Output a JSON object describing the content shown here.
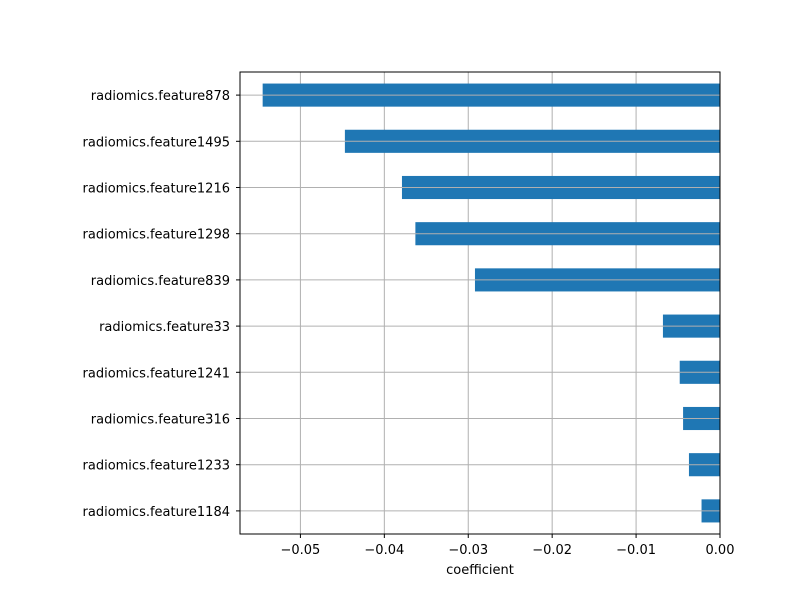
{
  "chart_data": {
    "type": "bar",
    "orientation": "horizontal",
    "categories": [
      "radiomics.feature878",
      "radiomics.feature1495",
      "radiomics.feature1216",
      "radiomics.feature1298",
      "radiomics.feature839",
      "radiomics.feature33",
      "radiomics.feature1241",
      "radiomics.feature316",
      "radiomics.feature1233",
      "radiomics.feature1184"
    ],
    "values": [
      -0.0545,
      -0.0447,
      -0.0379,
      -0.0363,
      -0.0292,
      -0.0068,
      -0.0048,
      -0.0044,
      -0.0037,
      -0.0022
    ],
    "xlabel": "coefficient",
    "ylabel": "",
    "title": "",
    "xlim": [
      -0.0572,
      0.0
    ],
    "xticks": [
      -0.05,
      -0.04,
      -0.03,
      -0.02,
      -0.01,
      0.0
    ],
    "xtick_labels": [
      "−0.05",
      "−0.04",
      "−0.03",
      "−0.02",
      "−0.01",
      "0.00"
    ],
    "grid": true,
    "colors": {
      "bar": "#1f77b4",
      "grid": "#b0b0b0",
      "axis": "#000000"
    }
  }
}
